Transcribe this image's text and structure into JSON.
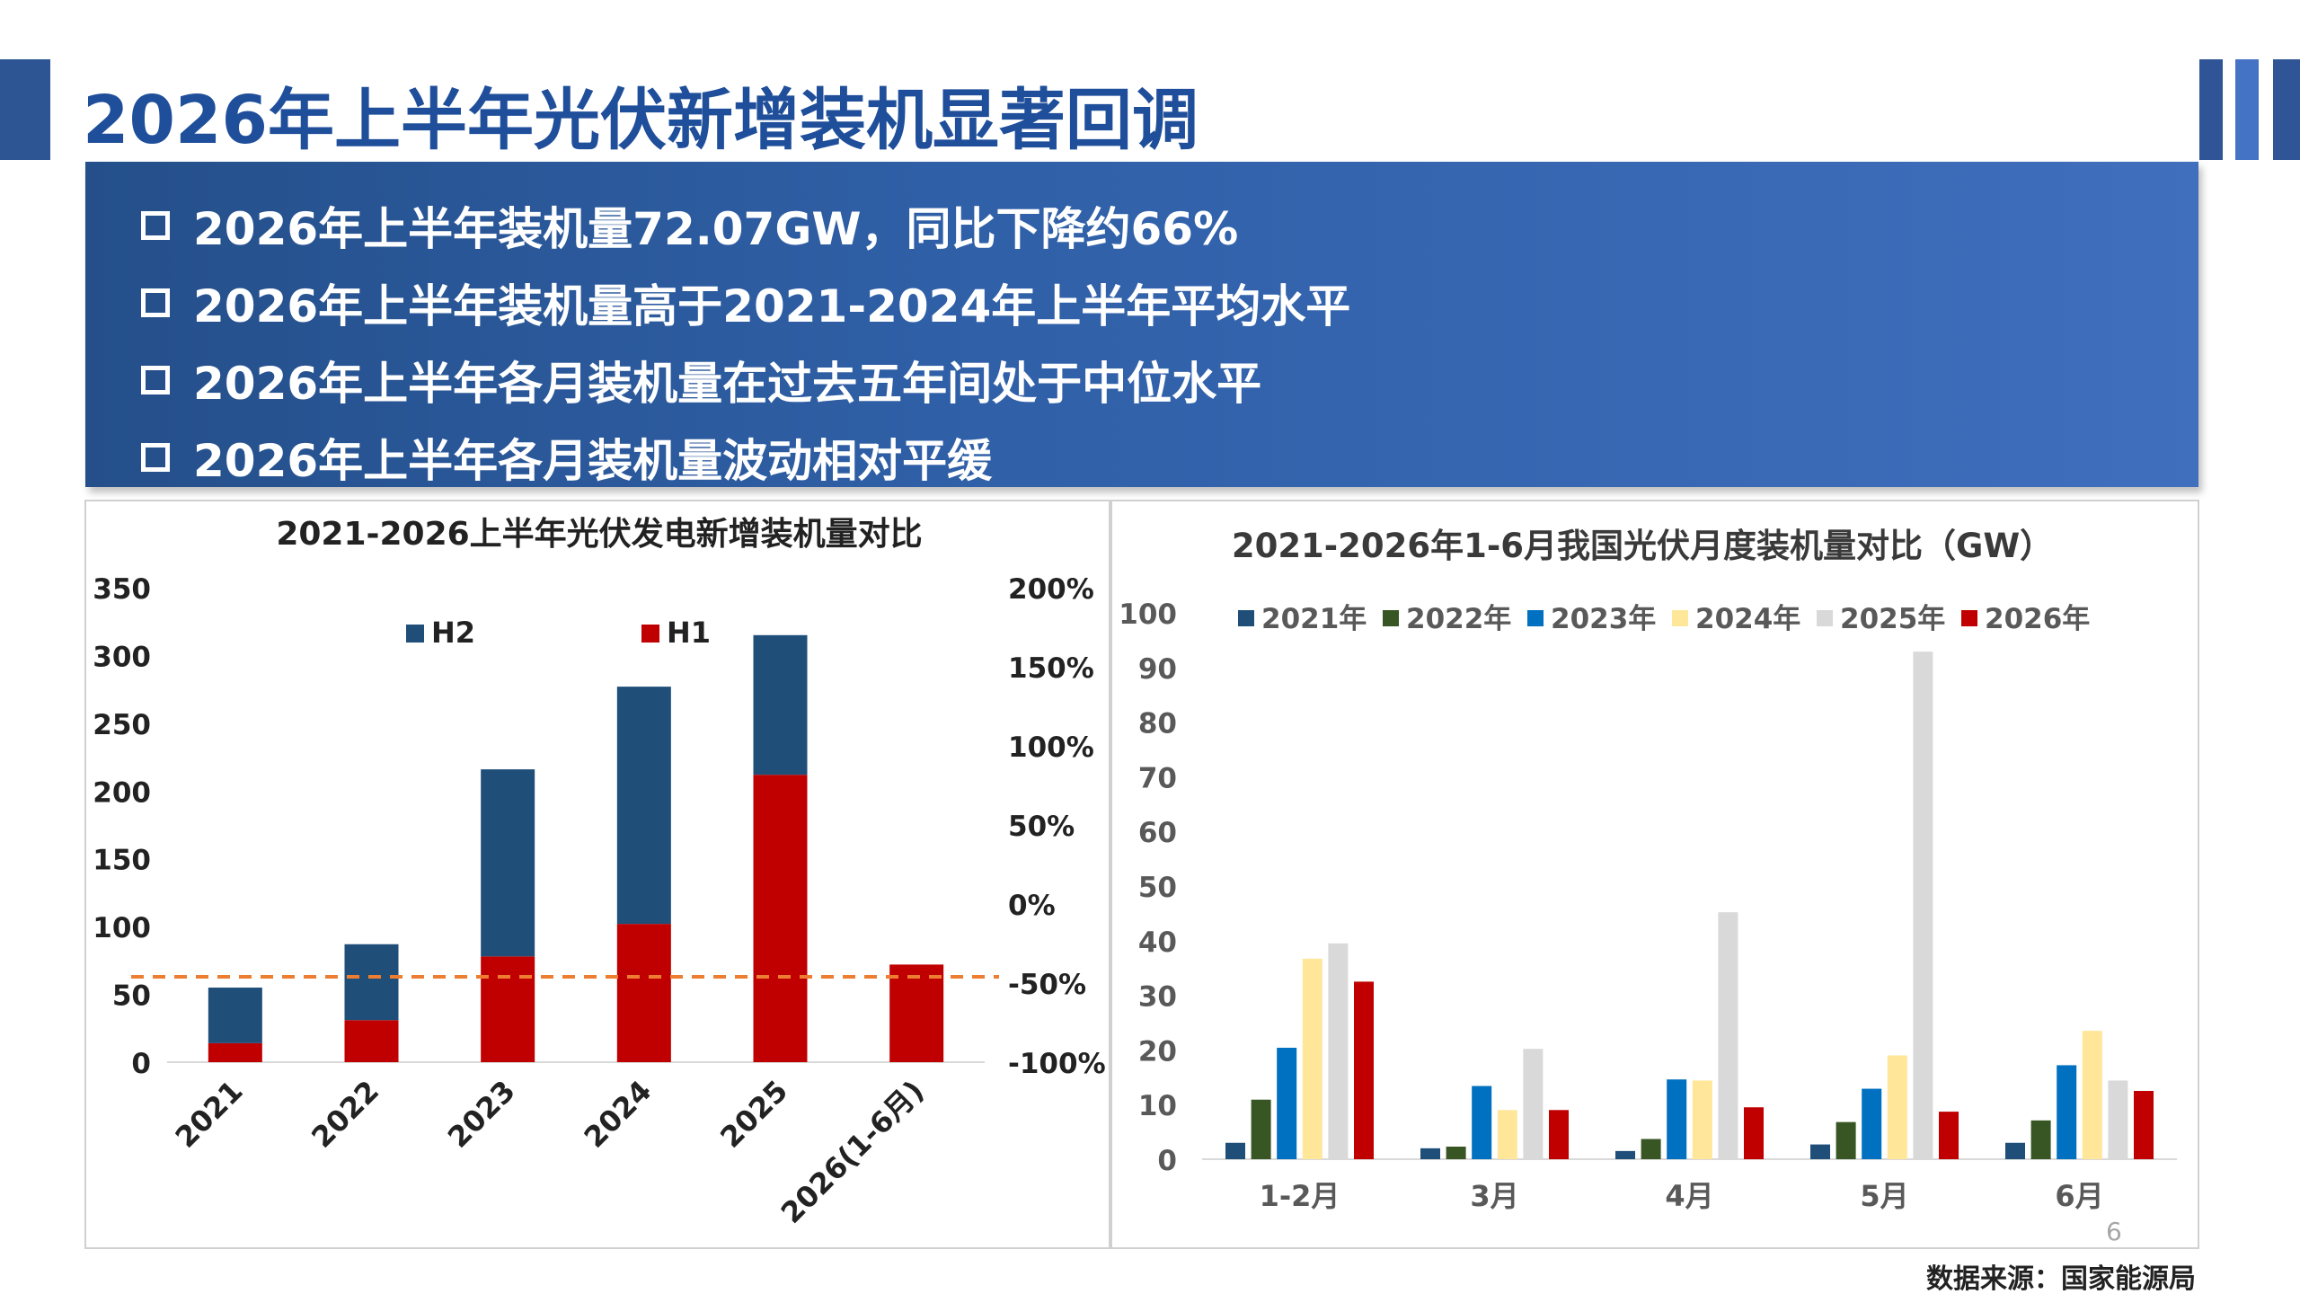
{
  "slide": {
    "title": "2026年上半年光伏新增装机显著回调",
    "bullets": [
      "2026年上半年装机量72.07GW，同比下降约66%",
      "2026年上半年装机量高于2021-2024年上半年平均水平",
      "2026年上半年各月装机量在过去五年间处于中位水平",
      "2026年上半年各月装机量波动相对平缓"
    ],
    "page_number": "6",
    "source": "数据来源：国家能源局",
    "colors": {
      "title": "#1f4e9a",
      "banner": "#2f5fa6",
      "accent": "#2e5593"
    }
  },
  "chart_data": [
    {
      "type": "bar",
      "stacked": true,
      "title": "2021-2026上半年光伏发电新增装机量对比",
      "categories": [
        "2021",
        "2022",
        "2023",
        "2024",
        "2025",
        "2026(1-6月)"
      ],
      "series": [
        {
          "name": "H1",
          "color": "#c00000",
          "values": [
            14,
            31,
            78,
            102,
            212,
            72
          ]
        },
        {
          "name": "H2",
          "color": "#1f4e79",
          "values": [
            41,
            56,
            138,
            175,
            103,
            null
          ]
        }
      ],
      "reference_line": {
        "value": 63,
        "color": "#ed7d31",
        "style": "dashed"
      },
      "ylim": [
        0,
        350
      ],
      "yticks": [
        "0",
        "50",
        "100",
        "150",
        "200",
        "250",
        "300",
        "350"
      ],
      "y2ticks": [
        "-100%",
        "-50%",
        "0%",
        "50%",
        "100%",
        "150%",
        "200%"
      ],
      "legend": [
        "H2",
        "H1"
      ],
      "legend_position": "top"
    },
    {
      "type": "bar",
      "title": "2021-2026年1-6月我国光伏月度装机量对比（GW）",
      "categories": [
        "1-2月",
        "3月",
        "4月",
        "5月",
        "6月"
      ],
      "series": [
        {
          "name": "2021年",
          "color": "#1f4e79",
          "values": [
            3,
            2,
            1.5,
            2.7,
            3
          ]
        },
        {
          "name": "2022年",
          "color": "#375623",
          "values": [
            10.9,
            2.3,
            3.7,
            6.8,
            7.1
          ]
        },
        {
          "name": "2023年",
          "color": "#0070c0",
          "values": [
            20.4,
            13.4,
            14.6,
            12.9,
            17.2
          ]
        },
        {
          "name": "2024年",
          "color": "#ffe699",
          "values": [
            36.7,
            9.0,
            14.4,
            19.0,
            23.5
          ]
        },
        {
          "name": "2025年",
          "color": "#d9d9d9",
          "values": [
            39.5,
            20.2,
            45.2,
            92.9,
            14.4
          ]
        },
        {
          "name": "2026年",
          "color": "#c00000",
          "values": [
            32.5,
            9.0,
            9.5,
            8.7,
            12.5
          ]
        }
      ],
      "ylim": [
        0,
        100
      ],
      "yticks": [
        "0",
        "10",
        "20",
        "30",
        "40",
        "50",
        "60",
        "70",
        "80",
        "90",
        "100"
      ],
      "legend_position": "top"
    }
  ]
}
